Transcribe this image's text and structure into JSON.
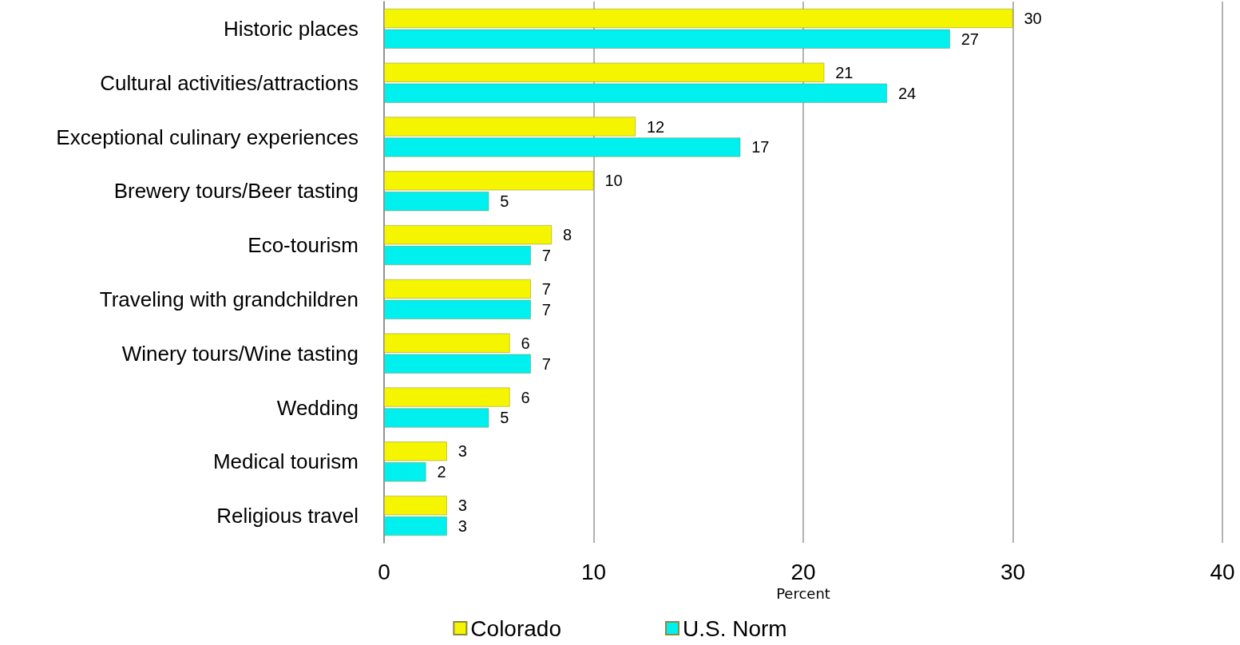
{
  "chart_data": {
    "type": "bar",
    "orientation": "horizontal",
    "xlabel": "Percent",
    "categories": [
      "Historic places",
      "Cultural activities/attractions",
      "Exceptional culinary experiences",
      "Brewery tours/Beer tasting",
      "Eco-tourism",
      "Traveling with grandchildren",
      "Winery tours/Wine tasting",
      "Wedding",
      "Medical tourism",
      "Religious travel"
    ],
    "series": [
      {
        "name": "Colorado",
        "color": "#f5f500",
        "values": [
          30,
          21,
          12,
          10,
          8,
          7,
          6,
          6,
          3,
          3
        ]
      },
      {
        "name": "U.S. Norm",
        "color": "#00f0f0",
        "values": [
          27,
          24,
          17,
          5,
          7,
          7,
          7,
          5,
          2,
          3
        ]
      }
    ],
    "xlim": [
      0,
      40
    ],
    "xticks": [
      0,
      10,
      20,
      30,
      40
    ],
    "grid": "x",
    "data_labels": true,
    "legend": "bottom"
  }
}
